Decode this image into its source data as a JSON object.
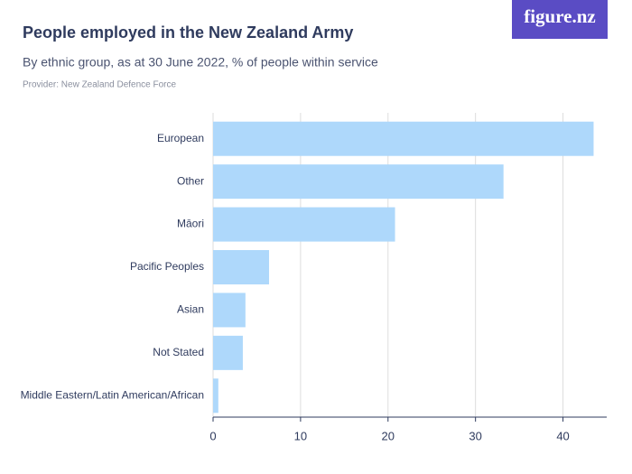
{
  "logo": "figure.nz",
  "chart_data": {
    "type": "barh",
    "title": "People employed in the New Zealand Army",
    "subtitle": "By ethnic group, as at 30 June 2022, % of people within service",
    "provider": "Provider: New Zealand Defence Force",
    "categories": [
      "European",
      "Other",
      "Māori",
      "Pacific Peoples",
      "Asian",
      "Not Stated",
      "Middle Eastern/Latin American/African"
    ],
    "values": [
      43.5,
      33.2,
      20.8,
      6.4,
      3.7,
      3.4,
      0.6
    ],
    "color": "#aed8fb",
    "xlim": [
      0,
      45
    ],
    "xticks": [
      0,
      10,
      20,
      30,
      40
    ],
    "grid": true
  }
}
